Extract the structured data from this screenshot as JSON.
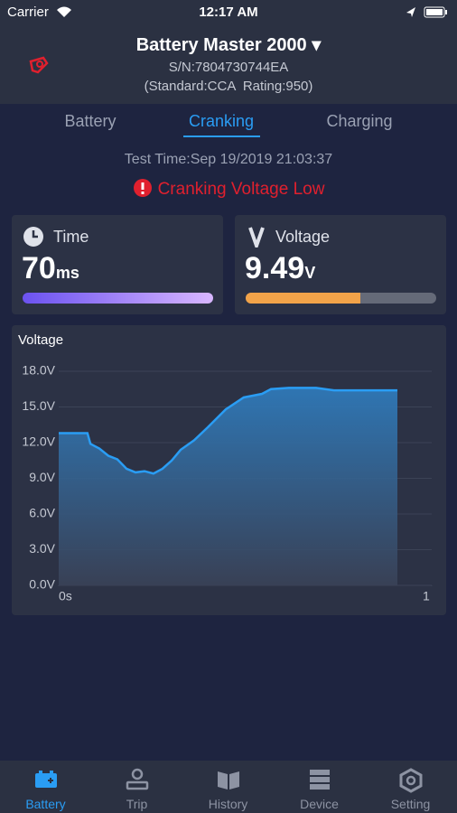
{
  "status_bar": {
    "carrier": "Carrier",
    "time": "12:17 AM"
  },
  "header": {
    "title": "Battery Master 2000",
    "serial": "S/N:7804730744EA",
    "spec": "(Standard:CCA  Rating:950)"
  },
  "tabs": {
    "items": [
      "Battery",
      "Cranking",
      "Charging"
    ],
    "active": 1
  },
  "test_time": "Test Time:Sep 19/2019 21:03:37",
  "alert": "Cranking Voltage Low",
  "metrics": [
    {
      "label": "Time",
      "value": 70,
      "unit": "ms"
    },
    {
      "label": "Voltage",
      "value": 9.49,
      "unit": "V"
    }
  ],
  "chart_data": {
    "type": "area",
    "title": "Voltage",
    "color": "#2a9df4",
    "x": [
      0,
      0.077,
      0.085,
      0.109,
      0.133,
      0.157,
      0.182,
      0.206,
      0.23,
      0.254,
      0.278,
      0.303,
      0.327,
      0.363,
      0.4,
      0.448,
      0.496,
      0.545,
      0.569,
      0.617,
      0.69,
      0.738,
      0.811,
      0.908
    ],
    "values": [
      12.8,
      12.8,
      11.9,
      11.5,
      10.9,
      10.6,
      9.8,
      9.5,
      9.6,
      9.4,
      9.8,
      10.5,
      11.4,
      12.2,
      13.3,
      14.8,
      15.8,
      16.1,
      16.5,
      16.6,
      16.6,
      16.4,
      16.4,
      16.4
    ],
    "xlim": [
      0,
      1
    ],
    "xticks": [
      {
        "value": 0,
        "label": "0s"
      },
      1
    ],
    "ylim": [
      0,
      18
    ],
    "yticks": [
      {
        "value": 0,
        "label": "0.0V"
      },
      {
        "value": 3,
        "label": "3.0V"
      },
      {
        "value": 6,
        "label": "6.0V"
      },
      {
        "value": 9,
        "label": "9.0V"
      },
      {
        "value": 12,
        "label": "12.0V"
      },
      {
        "value": 15,
        "label": "15.0V"
      },
      {
        "value": 18,
        "label": "18.0V"
      }
    ],
    "grid": true
  },
  "nav": {
    "items": [
      "Battery",
      "Trip",
      "History",
      "Device",
      "Setting"
    ],
    "active": 0
  }
}
